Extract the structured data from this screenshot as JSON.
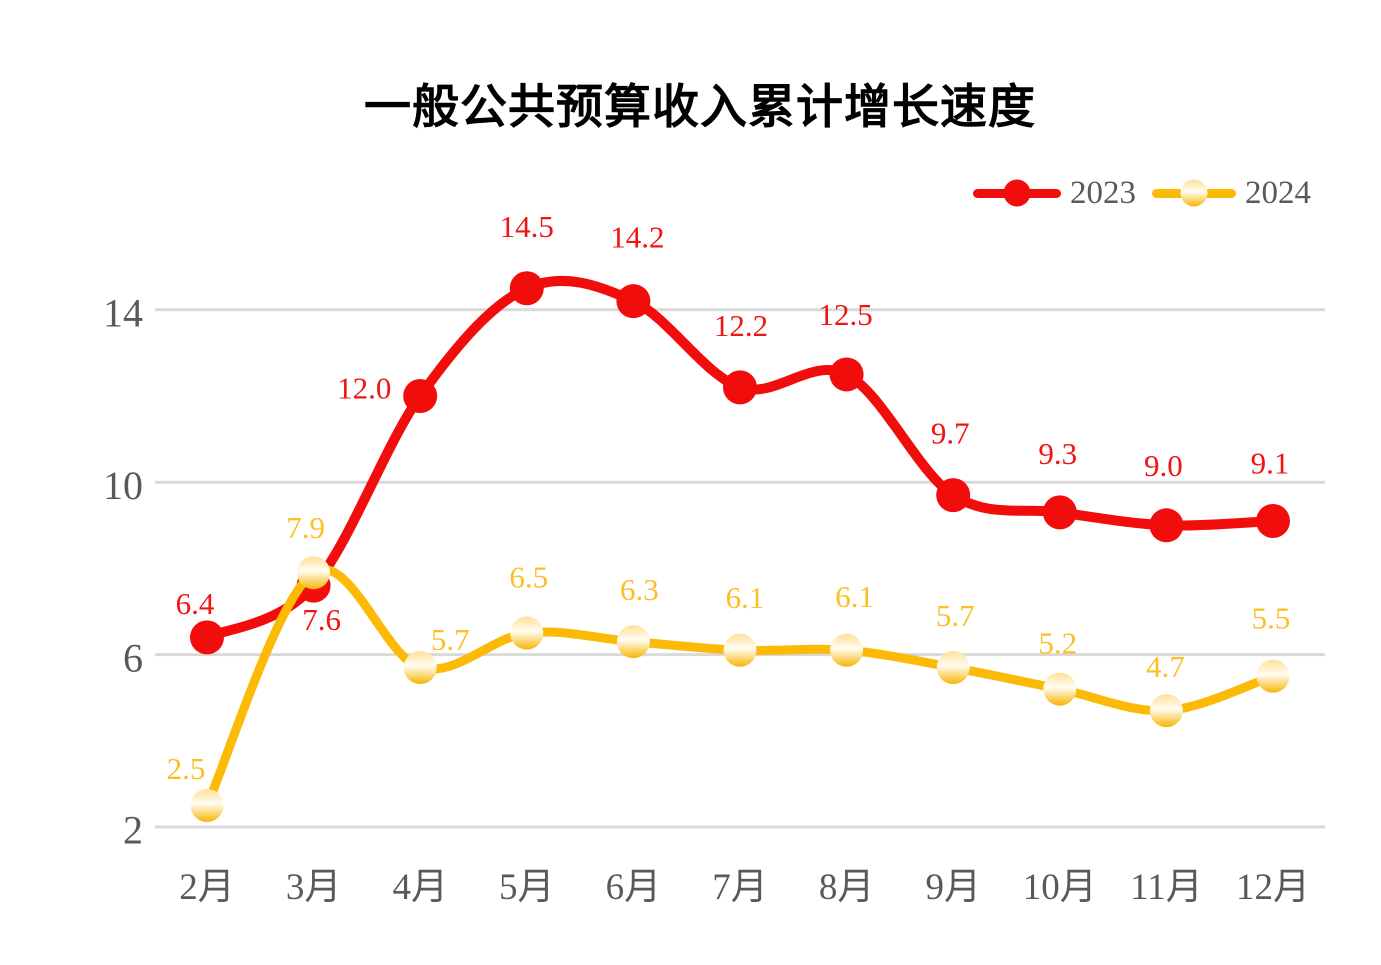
{
  "title": "一般公共预算收入累计增长速度",
  "background_color": "#ffffff",
  "axis_text_color": "#595959",
  "gridline_color": "#d9d9d9",
  "chart_data": {
    "type": "line",
    "title": "一般公共预算收入累计增长速度",
    "categories": [
      "2月",
      "3月",
      "4月",
      "5月",
      "6月",
      "7月",
      "8月",
      "9月",
      "10月",
      "11月",
      "12月"
    ],
    "series": [
      {
        "name": "2023",
        "values": [
          6.4,
          7.6,
          12.0,
          14.5,
          14.2,
          12.2,
          12.5,
          9.7,
          9.3,
          9.0,
          9.1
        ],
        "labels": [
          "6.4",
          "7.6",
          "12.0",
          "14.5",
          "14.2",
          "12.2",
          "12.5",
          "9.7",
          "9.3",
          "9.0",
          "9.1"
        ],
        "line_color": "#f20d0d",
        "label_color": "#ee1512",
        "marker": {
          "type": "solid",
          "color": "#f20d0d"
        },
        "label_offsets": [
          [
            -12,
            -34
          ],
          [
            8,
            34
          ],
          [
            -56,
            -8
          ],
          [
            0,
            -62
          ],
          [
            4,
            -64
          ],
          [
            1,
            -62
          ],
          [
            -1,
            -60
          ],
          [
            -3,
            -62
          ],
          [
            -2,
            -59
          ],
          [
            -3,
            -60
          ],
          [
            -3,
            -58
          ]
        ]
      },
      {
        "name": "2024",
        "values": [
          2.5,
          7.9,
          5.7,
          6.5,
          6.3,
          6.1,
          6.1,
          5.7,
          5.2,
          4.7,
          5.5
        ],
        "labels": [
          "2.5",
          "7.9",
          "5.7",
          "6.5",
          "6.3",
          "6.1",
          "6.1",
          "5.7",
          "5.2",
          "4.7",
          "5.5"
        ],
        "line_color": "#fbba06",
        "label_color": "#fcbf24",
        "marker": {
          "type": "gradient",
          "top": "#ffe096",
          "mid": "#fffdf3",
          "bottom": "#f7b404"
        },
        "label_offsets": [
          [
            -21,
            -37
          ],
          [
            -8,
            -45
          ],
          [
            30,
            -28
          ],
          [
            2,
            -56
          ],
          [
            6,
            -52
          ],
          [
            5,
            -53
          ],
          [
            8,
            -54
          ],
          [
            2,
            -52
          ],
          [
            -2,
            -46
          ],
          [
            -1,
            -44
          ],
          [
            -2,
            -58
          ]
        ]
      }
    ],
    "yticks": [
      2,
      6,
      10,
      14
    ],
    "ylim": [
      2,
      15.6
    ],
    "xlabel": "",
    "ylabel": "",
    "grid": true,
    "smooth": true,
    "legend_position": "top-right"
  }
}
